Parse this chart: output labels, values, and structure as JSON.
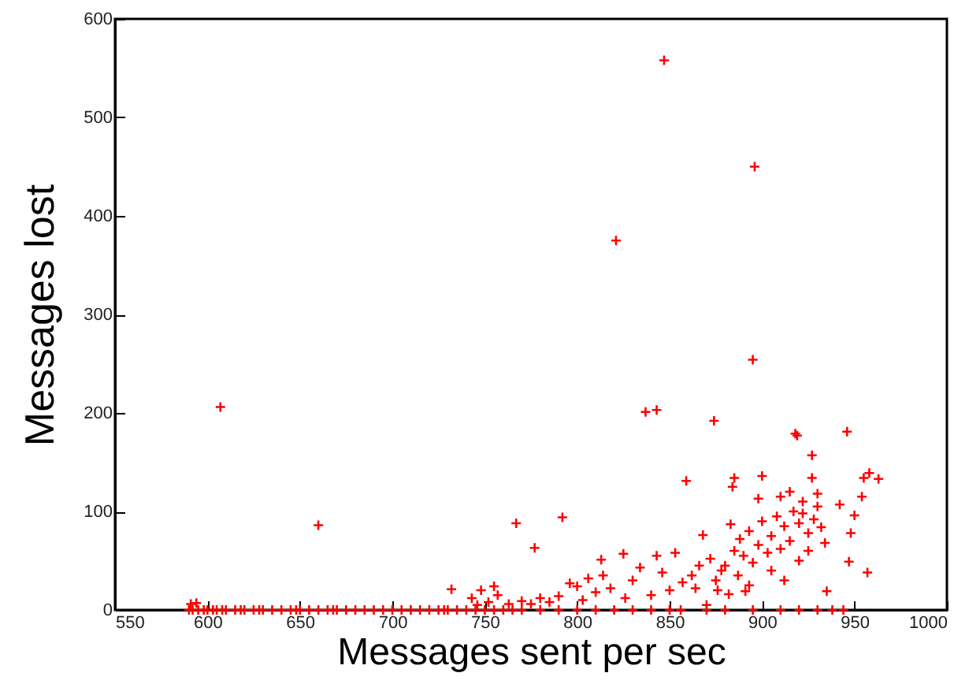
{
  "chart_data": {
    "type": "scatter",
    "xlabel": "Messages sent per sec",
    "ylabel": "Messages lost",
    "xlim": [
      550,
      1000
    ],
    "xticks": [
      550,
      600,
      650,
      700,
      750,
      800,
      850,
      900,
      950,
      1000
    ],
    "ylim": [
      0,
      600
    ],
    "yticks": [
      0,
      100,
      200,
      300,
      400,
      500,
      600
    ],
    "grid": false,
    "marker": "cross",
    "series": [
      {
        "color": "#ff0000",
        "x": [
          847,
          896,
          821,
          895,
          607,
          837,
          843,
          874,
          919,
          946,
          927,
          660,
          767,
          792,
          777,
          732,
          594,
          591,
          743,
          748,
          752,
          757,
          763,
          746,
          755,
          859,
          885,
          884,
          900,
          825,
          813,
          883,
          868,
          853,
          843,
          834,
          806,
          800,
          796,
          814,
          870,
          864,
          882,
          891,
          955,
          958,
          963,
          954,
          950,
          947,
          957,
          935,
          948,
          942,
          918,
          927,
          898,
          880,
          885,
          888,
          890,
          893,
          895,
          898,
          900,
          903,
          905,
          908,
          910,
          912,
          915,
          917,
          920,
          922,
          925,
          928,
          930,
          932,
          934,
          878,
          875,
          872,
          866,
          862,
          857,
          850,
          846,
          840,
          830,
          826,
          818,
          810,
          803,
          790,
          785,
          780,
          775,
          770,
          905,
          912,
          920,
          925,
          893,
          887,
          876,
          910,
          915,
          922,
          930,
          590,
          592,
          595,
          598,
          600,
          603,
          605,
          608,
          610,
          615,
          618,
          620,
          625,
          628,
          630,
          635,
          640,
          645,
          648,
          650,
          655,
          660,
          665,
          668,
          670,
          675,
          680,
          685,
          690,
          695,
          700,
          705,
          710,
          715,
          720,
          725,
          728,
          730,
          735,
          740,
          745,
          750,
          755,
          760,
          765,
          770,
          780,
          790,
          800,
          810,
          820,
          830,
          840,
          850,
          856,
          870,
          880,
          895,
          910,
          920,
          930,
          938,
          944
        ],
        "values": [
          558,
          450,
          375,
          254,
          206,
          201,
          203,
          192,
          177,
          181,
          157,
          86,
          88,
          94,
          63,
          21,
          7,
          6,
          12,
          20,
          8,
          15,
          6,
          5,
          24,
          131,
          134,
          125,
          136,
          57,
          51,
          87,
          76,
          58,
          55,
          43,
          32,
          24,
          27,
          35,
          5,
          22,
          16,
          19,
          134,
          139,
          133,
          115,
          96,
          49,
          38,
          19,
          78,
          107,
          179,
          134,
          113,
          45,
          60,
          72,
          55,
          80,
          48,
          66,
          90,
          58,
          75,
          95,
          62,
          85,
          70,
          100,
          88,
          110,
          78,
          92,
          105,
          84,
          68,
          40,
          30,
          52,
          45,
          35,
          28,
          20,
          38,
          15,
          30,
          12,
          22,
          18,
          10,
          14,
          8,
          12,
          6,
          9,
          40,
          30,
          50,
          60,
          25,
          35,
          20,
          115,
          120,
          98,
          118,
          0,
          0,
          0,
          0,
          0,
          0,
          0,
          0,
          0,
          0,
          0,
          0,
          0,
          0,
          0,
          0,
          0,
          0,
          0,
          0,
          0,
          0,
          0,
          0,
          0,
          0,
          0,
          0,
          0,
          0,
          0,
          0,
          0,
          0,
          0,
          0,
          0,
          0,
          0,
          0,
          0,
          0,
          0,
          0,
          0,
          0,
          0,
          0,
          0,
          0,
          0,
          0,
          0,
          0,
          0,
          0,
          0,
          0,
          0,
          0,
          0,
          0,
          0
        ]
      }
    ]
  }
}
